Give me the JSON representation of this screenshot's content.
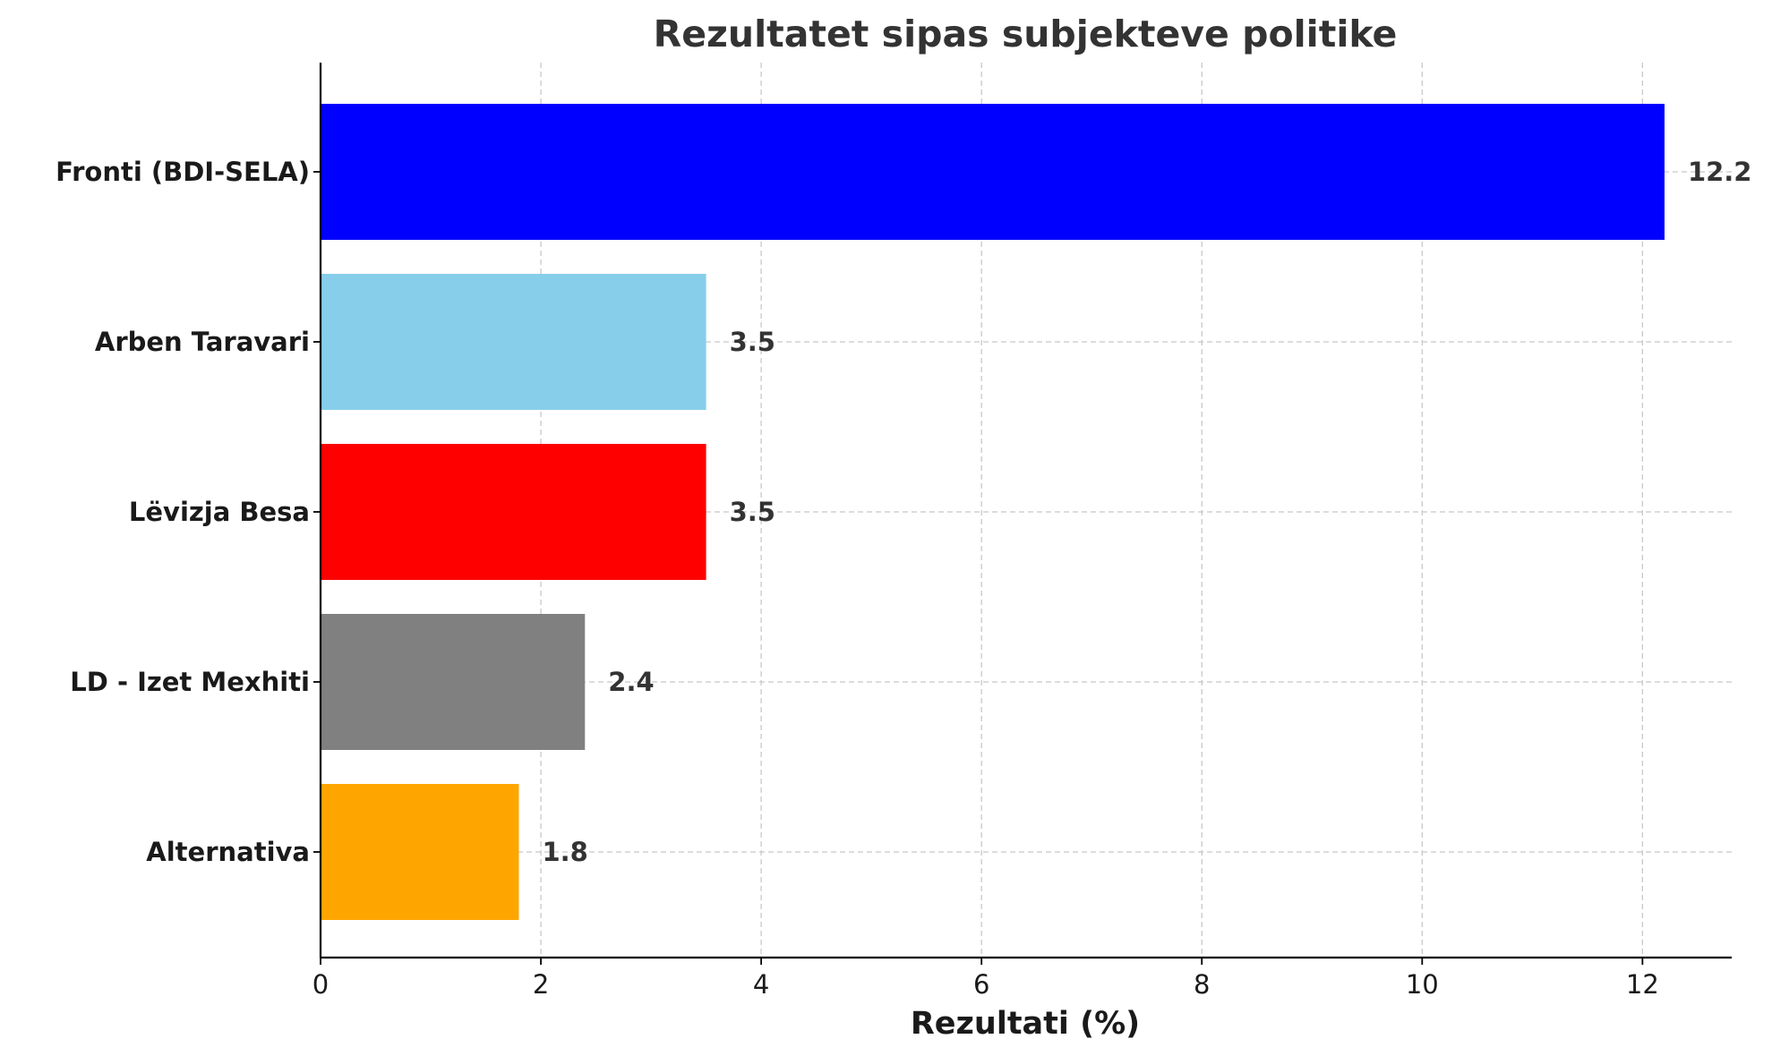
{
  "chart_data": {
    "type": "bar",
    "orientation": "horizontal",
    "title": "Rezultatet sipas subjekteve politike",
    "xlabel": "Rezultati (%)",
    "ylabel": "",
    "categories": [
      "Fronti (BDI-SELA)",
      "Arben Taravari",
      "Lëvizja Besa",
      "LD - Izet Mexhiti",
      "Alternativa"
    ],
    "values": [
      12.2,
      3.5,
      3.5,
      2.4,
      1.8
    ],
    "data_labels": [
      "12.2",
      "3.5",
      "3.5",
      "2.4",
      "1.8"
    ],
    "colors": [
      "#0000ff",
      "#87ceeb",
      "#ff0000",
      "#808080",
      "#ffa500"
    ],
    "xlim": [
      0,
      12.81
    ],
    "xticks": [
      0,
      2,
      4,
      6,
      8,
      10,
      12
    ],
    "xtick_labels": [
      "0",
      "2",
      "4",
      "6",
      "8",
      "10",
      "12"
    ],
    "grid": true
  }
}
